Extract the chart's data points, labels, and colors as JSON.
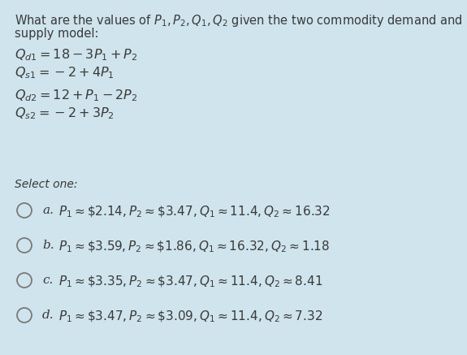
{
  "background_color": "#cfe4ed",
  "title_line1": "What are the values of $P_1, P_2, Q_1, Q_2$ given the two commodity demand and",
  "title_line2": "supply model:",
  "eq1": "$Q_{d1} = 18 - 3P_1 + P_2$",
  "eq2": "$Q_{s1} = -2 + 4P_1$",
  "eq3": "$Q_{d2} = 12 + P_1 - 2P_2$",
  "eq4": "$Q_{s2} = -2 + 3P_2$",
  "select_one": "Select one:",
  "opt_labels": [
    "a.",
    "b.",
    "c.",
    "d."
  ],
  "opt_texts": [
    "$P_1 \\approx \\$2.14, P_2 \\approx \\$3.47, Q_1 \\approx 11.4, Q_2 \\approx 16.32$",
    "$P_1 \\approx \\$3.59, P_2 \\approx \\$1.86, Q_1 \\approx 16.32, Q_2 \\approx 1.18$",
    "$P_1 \\approx \\$3.35, P_2 \\approx \\$3.47, Q_1 \\approx 11.4, Q_2 \\approx 8.41$",
    "$P_1 \\approx \\$3.47, P_2 \\approx \\$3.09, Q_1 \\approx 11.4, Q_2 \\approx 7.32$"
  ],
  "text_color": "#3a3a3a",
  "circle_color": "#7a7a7a",
  "fontsize_title": 10.5,
  "fontsize_eq": 11.5,
  "fontsize_select": 10.0,
  "fontsize_options": 11.0
}
